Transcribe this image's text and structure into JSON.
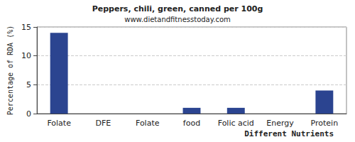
{
  "chart_data": {
    "type": "bar",
    "title": "Peppers, chili, green, canned per 100g",
    "subtitle": "www.dietandfitnesstoday.com",
    "x_label": "Different Nutrients",
    "y_label": "Percentage of RDA (%)",
    "categories": [
      "Folate",
      "DFE",
      "Folate",
      "food",
      "Folic acid",
      "Energy",
      "Protein"
    ],
    "values": [
      14,
      0,
      0,
      1,
      1,
      0,
      4
    ],
    "color": "#2b4490",
    "ylim": [
      0,
      15
    ],
    "yticks": [
      0,
      5,
      10,
      15
    ],
    "grid": true
  }
}
